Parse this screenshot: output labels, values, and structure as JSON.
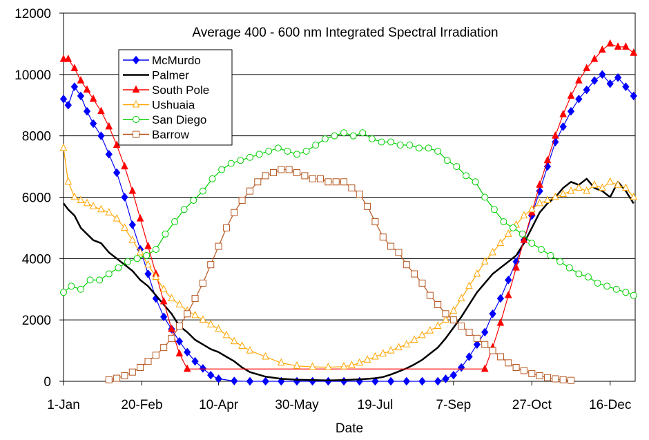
{
  "chart_data": {
    "type": "line",
    "title": "Average 400 - 600 nm Integrated Spectral Irradiation",
    "xlabel": "Date",
    "ylabel": "",
    "xlim": [
      1,
      366
    ],
    "ylim": [
      0,
      12000
    ],
    "yticks": [
      0,
      2000,
      4000,
      6000,
      8000,
      10000,
      12000
    ],
    "xticks": [
      {
        "value": 1,
        "label": "1-Jan"
      },
      {
        "value": 51,
        "label": "20-Feb"
      },
      {
        "value": 100,
        "label": "10-Apr"
      },
      {
        "value": 150,
        "label": "30-May"
      },
      {
        "value": 200,
        "label": "19-Jul"
      },
      {
        "value": 250,
        "label": "7-Sep"
      },
      {
        "value": 300,
        "label": "27-Oct"
      },
      {
        "value": 350,
        "label": "16-Dec"
      }
    ],
    "grid": "horizontal",
    "legend": "top-left",
    "series": [
      {
        "name": "McMurdo",
        "color": "#0000ff",
        "marker": "diamond",
        "line": true,
        "x": [
          1,
          4,
          8,
          12,
          16,
          20,
          25,
          30,
          35,
          40,
          45,
          50,
          55,
          60,
          65,
          70,
          75,
          80,
          85,
          90,
          95,
          100,
          110,
          120,
          130,
          140,
          150,
          160,
          170,
          180,
          190,
          200,
          210,
          220,
          230,
          240,
          245,
          250,
          255,
          260,
          265,
          270,
          275,
          280,
          285,
          290,
          295,
          300,
          305,
          310,
          315,
          320,
          325,
          330,
          335,
          340,
          345,
          350,
          355,
          360,
          365
        ],
        "y": [
          9200,
          9000,
          9600,
          9300,
          8800,
          8400,
          8000,
          7400,
          6800,
          6000,
          5100,
          4300,
          3500,
          2700,
          2100,
          1700,
          1300,
          950,
          650,
          420,
          200,
          80,
          10,
          0,
          0,
          0,
          0,
          0,
          0,
          0,
          0,
          0,
          0,
          0,
          0,
          0,
          80,
          200,
          450,
          800,
          1200,
          1600,
          2200,
          2700,
          3300,
          3900,
          4600,
          5400,
          6200,
          7000,
          7800,
          8300,
          8800,
          9200,
          9500,
          9800,
          10000,
          9700,
          9900,
          9600,
          9300
        ]
      },
      {
        "name": "Palmer",
        "color": "#000000",
        "marker": "none",
        "line": true,
        "x": [
          1,
          4,
          8,
          12,
          16,
          20,
          25,
          30,
          35,
          40,
          45,
          50,
          55,
          60,
          65,
          70,
          75,
          80,
          85,
          90,
          95,
          100,
          105,
          110,
          115,
          120,
          130,
          140,
          150,
          160,
          170,
          180,
          190,
          200,
          205,
          210,
          215,
          220,
          225,
          230,
          235,
          240,
          245,
          250,
          255,
          260,
          265,
          270,
          275,
          280,
          285,
          290,
          295,
          300,
          305,
          310,
          315,
          320,
          325,
          330,
          335,
          340,
          345,
          350,
          355,
          360,
          365
        ],
        "y": [
          5800,
          5600,
          5400,
          5000,
          4800,
          4600,
          4500,
          4200,
          4000,
          3800,
          3600,
          3300,
          3100,
          2800,
          2500,
          2200,
          1800,
          1600,
          1350,
          1200,
          1050,
          950,
          800,
          650,
          450,
          300,
          150,
          80,
          50,
          40,
          30,
          40,
          60,
          100,
          140,
          220,
          320,
          420,
          550,
          700,
          900,
          1100,
          1400,
          1750,
          2100,
          2500,
          2900,
          3200,
          3500,
          3700,
          3900,
          4100,
          4500,
          5000,
          5500,
          5800,
          6000,
          6300,
          6500,
          6400,
          6600,
          6300,
          6200,
          6000,
          6500,
          6200,
          5800
        ]
      },
      {
        "name": "South Pole",
        "color": "#ff0000",
        "marker": "triangle",
        "line": true,
        "x": [
          1,
          4,
          8,
          12,
          16,
          20,
          25,
          30,
          35,
          40,
          45,
          50,
          55,
          60,
          65,
          70,
          75,
          80,
          270,
          275,
          280,
          285,
          290,
          295,
          300,
          305,
          310,
          315,
          320,
          325,
          330,
          335,
          340,
          345,
          350,
          355,
          360,
          365
        ],
        "y": [
          10500,
          10500,
          10200,
          9800,
          9500,
          9200,
          8800,
          8300,
          7700,
          7000,
          6200,
          5300,
          4400,
          3500,
          2600,
          1700,
          900,
          400,
          400,
          1100,
          1900,
          2800,
          3700,
          4600,
          5500,
          6400,
          7200,
          8000,
          8700,
          9300,
          9800,
          10200,
          10500,
          10800,
          11000,
          10900,
          10900,
          10700
        ]
      },
      {
        "name": "Ushuaia",
        "color": "#ffa500",
        "marker": "triangle-open",
        "line": true,
        "x": [
          1,
          4,
          8,
          12,
          16,
          20,
          25,
          30,
          35,
          40,
          45,
          50,
          55,
          60,
          65,
          70,
          75,
          80,
          85,
          90,
          95,
          100,
          105,
          110,
          115,
          120,
          130,
          140,
          150,
          160,
          170,
          180,
          185,
          190,
          195,
          200,
          205,
          210,
          215,
          220,
          225,
          230,
          235,
          240,
          245,
          250,
          255,
          260,
          265,
          270,
          275,
          280,
          285,
          290,
          295,
          300,
          305,
          310,
          315,
          320,
          325,
          330,
          335,
          340,
          345,
          350,
          355,
          360,
          365
        ],
        "y": [
          7600,
          6500,
          6000,
          5900,
          5800,
          5700,
          5600,
          5500,
          5300,
          5000,
          4600,
          4200,
          3800,
          3400,
          3000,
          2700,
          2500,
          2300,
          2150,
          2000,
          1850,
          1700,
          1500,
          1300,
          1150,
          1000,
          800,
          600,
          500,
          470,
          460,
          480,
          520,
          600,
          700,
          800,
          900,
          1000,
          1100,
          1200,
          1350,
          1500,
          1650,
          1800,
          2000,
          2300,
          2700,
          3100,
          3500,
          3900,
          4200,
          4500,
          4800,
          5100,
          5400,
          5600,
          5800,
          5900,
          6000,
          6100,
          6200,
          6300,
          6200,
          6400,
          6300,
          6500,
          6400,
          6300,
          6000
        ]
      },
      {
        "name": "San Diego",
        "color": "#00d000",
        "marker": "circle-open",
        "line": true,
        "x": [
          1,
          6,
          12,
          18,
          24,
          30,
          36,
          42,
          48,
          54,
          60,
          66,
          72,
          78,
          84,
          90,
          96,
          102,
          108,
          114,
          120,
          126,
          132,
          138,
          144,
          150,
          156,
          162,
          168,
          174,
          180,
          186,
          192,
          198,
          204,
          210,
          216,
          222,
          228,
          234,
          240,
          246,
          252,
          258,
          264,
          270,
          276,
          282,
          288,
          294,
          300,
          306,
          312,
          318,
          324,
          330,
          336,
          342,
          348,
          354,
          360,
          365
        ],
        "y": [
          2900,
          3100,
          3000,
          3300,
          3300,
          3500,
          3700,
          3900,
          4000,
          4100,
          4300,
          4800,
          5200,
          5600,
          5900,
          6200,
          6600,
          6900,
          7100,
          7200,
          7300,
          7400,
          7500,
          7600,
          7500,
          7400,
          7500,
          7700,
          7900,
          8000,
          8100,
          8000,
          8100,
          7900,
          7800,
          7800,
          7700,
          7700,
          7600,
          7600,
          7500,
          7200,
          7000,
          6700,
          6500,
          6000,
          5600,
          5200,
          5000,
          4800,
          4500,
          4300,
          4100,
          3900,
          3700,
          3500,
          3400,
          3200,
          3100,
          3000,
          2900,
          2800
        ]
      },
      {
        "name": "Barrow",
        "color": "#b5551d",
        "marker": "square-open",
        "line": true,
        "x": [
          30,
          35,
          40,
          45,
          50,
          55,
          60,
          65,
          70,
          75,
          80,
          85,
          90,
          95,
          100,
          105,
          110,
          115,
          120,
          125,
          130,
          135,
          140,
          145,
          150,
          155,
          160,
          165,
          170,
          175,
          180,
          185,
          190,
          195,
          200,
          205,
          210,
          215,
          220,
          225,
          230,
          235,
          240,
          245,
          250,
          255,
          260,
          265,
          270,
          275,
          280,
          285,
          290,
          295,
          300,
          305,
          310,
          315,
          320,
          325
        ],
        "y": [
          50,
          100,
          180,
          300,
          450,
          650,
          850,
          1100,
          1400,
          1800,
          2200,
          2700,
          3200,
          3800,
          4400,
          5000,
          5500,
          5900,
          6200,
          6500,
          6700,
          6800,
          6900,
          6900,
          6800,
          6700,
          6600,
          6600,
          6500,
          6500,
          6500,
          6300,
          6100,
          5700,
          5200,
          4700,
          4400,
          4200,
          3800,
          3500,
          3200,
          2800,
          2500,
          2200,
          2000,
          1800,
          1600,
          1400,
          1200,
          1000,
          800,
          600,
          450,
          350,
          250,
          180,
          120,
          80,
          50,
          30
        ]
      }
    ]
  }
}
